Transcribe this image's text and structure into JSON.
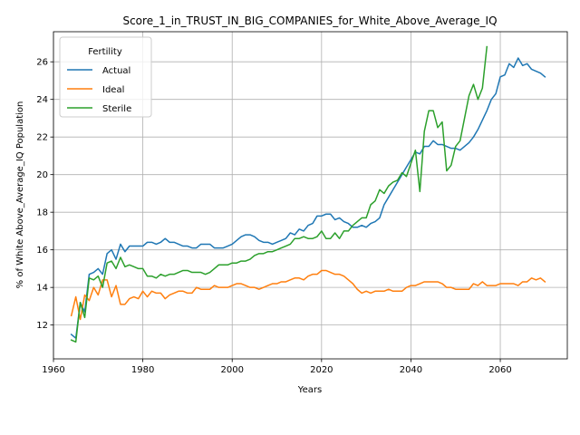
{
  "chart_data": {
    "type": "line",
    "title": "Score_1_in_TRUST_IN_BIG_COMPANIES_for_White_Above_Average_IQ",
    "xlabel": "Years",
    "ylabel": "% of White Above_Average_IQ Population",
    "xlim": [
      1960,
      2075
    ],
    "ylim": [
      10.2,
      27.6
    ],
    "xticks": [
      1960,
      1980,
      2000,
      2020,
      2040,
      2060
    ],
    "yticks": [
      12,
      14,
      16,
      18,
      20,
      22,
      24,
      26
    ],
    "grid": true,
    "legend": {
      "title": "Fertility",
      "placement": "top-left"
    },
    "series": [
      {
        "name": "Actual",
        "color": "#1f77b4",
        "x": [
          1964,
          1965,
          1966,
          1967,
          1968,
          1969,
          1970,
          1971,
          1972,
          1973,
          1974,
          1975,
          1976,
          1977,
          1978,
          1979,
          1980,
          1981,
          1982,
          1983,
          1984,
          1985,
          1986,
          1987,
          1988,
          1989,
          1990,
          1991,
          1992,
          1993,
          1994,
          1995,
          1996,
          1997,
          1998,
          1999,
          2000,
          2001,
          2002,
          2003,
          2004,
          2005,
          2006,
          2007,
          2008,
          2009,
          2010,
          2011,
          2012,
          2013,
          2014,
          2015,
          2016,
          2017,
          2018,
          2019,
          2020,
          2021,
          2022,
          2023,
          2024,
          2025,
          2026,
          2027,
          2028,
          2029,
          2030,
          2031,
          2032,
          2033,
          2034,
          2035,
          2036,
          2037,
          2038,
          2039,
          2040,
          2041,
          2042,
          2043,
          2044,
          2045,
          2046,
          2047,
          2048,
          2049,
          2050,
          2051,
          2052,
          2053,
          2054,
          2055,
          2056,
          2057,
          2058,
          2059,
          2060,
          2061,
          2062,
          2063,
          2064,
          2065,
          2066,
          2067,
          2068,
          2069,
          2070
        ],
        "values": [
          11.5,
          11.3,
          13.2,
          12.7,
          14.7,
          14.8,
          15.0,
          14.7,
          15.8,
          16.0,
          15.5,
          16.3,
          15.9,
          16.2,
          16.2,
          16.2,
          16.2,
          16.4,
          16.4,
          16.3,
          16.4,
          16.6,
          16.4,
          16.4,
          16.3,
          16.2,
          16.2,
          16.1,
          16.1,
          16.3,
          16.3,
          16.3,
          16.1,
          16.1,
          16.1,
          16.2,
          16.3,
          16.5,
          16.7,
          16.8,
          16.8,
          16.7,
          16.5,
          16.4,
          16.4,
          16.3,
          16.4,
          16.5,
          16.6,
          16.9,
          16.8,
          17.1,
          17.0,
          17.3,
          17.4,
          17.8,
          17.8,
          17.9,
          17.9,
          17.6,
          17.7,
          17.5,
          17.4,
          17.2,
          17.2,
          17.3,
          17.2,
          17.4,
          17.5,
          17.7,
          18.4,
          18.8,
          19.2,
          19.6,
          20.0,
          20.4,
          20.8,
          21.2,
          21.1,
          21.5,
          21.5,
          21.8,
          21.6,
          21.6,
          21.5,
          21.4,
          21.4,
          21.3,
          21.5,
          21.7,
          22.0,
          22.4,
          22.9,
          23.4,
          24.0,
          24.3,
          25.2,
          25.3,
          25.9,
          25.7,
          26.2,
          25.8,
          25.9,
          25.6,
          25.5,
          25.4,
          25.2
        ]
      },
      {
        "name": "Ideal",
        "color": "#ff7f0e",
        "x": [
          1964,
          1965,
          1966,
          1967,
          1968,
          1969,
          1970,
          1971,
          1972,
          1973,
          1974,
          1975,
          1976,
          1977,
          1978,
          1979,
          1980,
          1981,
          1982,
          1983,
          1984,
          1985,
          1986,
          1987,
          1988,
          1989,
          1990,
          1991,
          1992,
          1993,
          1994,
          1995,
          1996,
          1997,
          1998,
          1999,
          2000,
          2001,
          2002,
          2003,
          2004,
          2005,
          2006,
          2007,
          2008,
          2009,
          2010,
          2011,
          2012,
          2013,
          2014,
          2015,
          2016,
          2017,
          2018,
          2019,
          2020,
          2021,
          2022,
          2023,
          2024,
          2025,
          2026,
          2027,
          2028,
          2029,
          2030,
          2031,
          2032,
          2033,
          2034,
          2035,
          2036,
          2037,
          2038,
          2039,
          2040,
          2041,
          2042,
          2043,
          2044,
          2045,
          2046,
          2047,
          2048,
          2049,
          2050,
          2051,
          2052,
          2053,
          2054,
          2055,
          2056,
          2057,
          2058,
          2059,
          2060,
          2061,
          2062,
          2063,
          2064,
          2065,
          2066,
          2067,
          2068,
          2069,
          2070
        ],
        "values": [
          12.5,
          13.5,
          12.3,
          13.6,
          13.3,
          14.0,
          13.6,
          14.4,
          14.4,
          13.5,
          14.1,
          13.1,
          13.1,
          13.4,
          13.5,
          13.4,
          13.8,
          13.5,
          13.8,
          13.7,
          13.7,
          13.4,
          13.6,
          13.7,
          13.8,
          13.8,
          13.7,
          13.7,
          14.0,
          13.9,
          13.9,
          13.9,
          14.1,
          14.0,
          14.0,
          14.0,
          14.1,
          14.2,
          14.2,
          14.1,
          14.0,
          14.0,
          13.9,
          14.0,
          14.1,
          14.2,
          14.2,
          14.3,
          14.3,
          14.4,
          14.5,
          14.5,
          14.4,
          14.6,
          14.7,
          14.7,
          14.9,
          14.9,
          14.8,
          14.7,
          14.7,
          14.6,
          14.4,
          14.2,
          13.9,
          13.7,
          13.8,
          13.7,
          13.8,
          13.8,
          13.8,
          13.9,
          13.8,
          13.8,
          13.8,
          14.0,
          14.1,
          14.1,
          14.2,
          14.3,
          14.3,
          14.3,
          14.3,
          14.2,
          14.0,
          14.0,
          13.9,
          13.9,
          13.9,
          13.9,
          14.2,
          14.1,
          14.3,
          14.1,
          14.1,
          14.1,
          14.2,
          14.2,
          14.2,
          14.2,
          14.1,
          14.3,
          14.3,
          14.5,
          14.4,
          14.5,
          14.3
        ]
      },
      {
        "name": "Sterile",
        "color": "#2ca02c",
        "x": [
          1964,
          1965,
          1966,
          1967,
          1968,
          1969,
          1970,
          1971,
          1972,
          1973,
          1974,
          1975,
          1976,
          1977,
          1978,
          1979,
          1980,
          1981,
          1982,
          1983,
          1984,
          1985,
          1986,
          1987,
          1988,
          1989,
          1990,
          1991,
          1992,
          1993,
          1994,
          1995,
          1996,
          1997,
          1998,
          1999,
          2000,
          2001,
          2002,
          2003,
          2004,
          2005,
          2006,
          2007,
          2008,
          2009,
          2010,
          2011,
          2012,
          2013,
          2014,
          2015,
          2016,
          2017,
          2018,
          2019,
          2020,
          2021,
          2022,
          2023,
          2024,
          2025,
          2026,
          2027,
          2028,
          2029,
          2030,
          2031,
          2032,
          2033,
          2034,
          2035,
          2036,
          2037,
          2038,
          2039,
          2040,
          2041,
          2042,
          2043,
          2044,
          2045,
          2046,
          2047,
          2048,
          2049,
          2050,
          2051,
          2052,
          2053,
          2054,
          2055,
          2056,
          2057
        ],
        "values": [
          11.2,
          11.1,
          13.2,
          12.4,
          14.5,
          14.4,
          14.6,
          14.0,
          15.3,
          15.4,
          15.0,
          15.6,
          15.1,
          15.2,
          15.1,
          15.0,
          15.0,
          14.6,
          14.6,
          14.5,
          14.7,
          14.6,
          14.7,
          14.7,
          14.8,
          14.9,
          14.9,
          14.8,
          14.8,
          14.8,
          14.7,
          14.8,
          15.0,
          15.2,
          15.2,
          15.2,
          15.3,
          15.3,
          15.4,
          15.4,
          15.5,
          15.7,
          15.8,
          15.8,
          15.9,
          15.9,
          16.0,
          16.1,
          16.2,
          16.3,
          16.6,
          16.6,
          16.7,
          16.6,
          16.6,
          16.7,
          17.0,
          16.6,
          16.6,
          16.9,
          16.6,
          17.0,
          17.0,
          17.3,
          17.5,
          17.7,
          17.7,
          18.4,
          18.6,
          19.2,
          19.0,
          19.4,
          19.6,
          19.7,
          20.1,
          19.9,
          20.6,
          21.3,
          19.1,
          22.3,
          23.4,
          23.4,
          22.5,
          22.8,
          20.2,
          20.5,
          21.5,
          21.8,
          23.0,
          24.2,
          24.8,
          24.0,
          24.6,
          26.8
        ]
      }
    ]
  }
}
